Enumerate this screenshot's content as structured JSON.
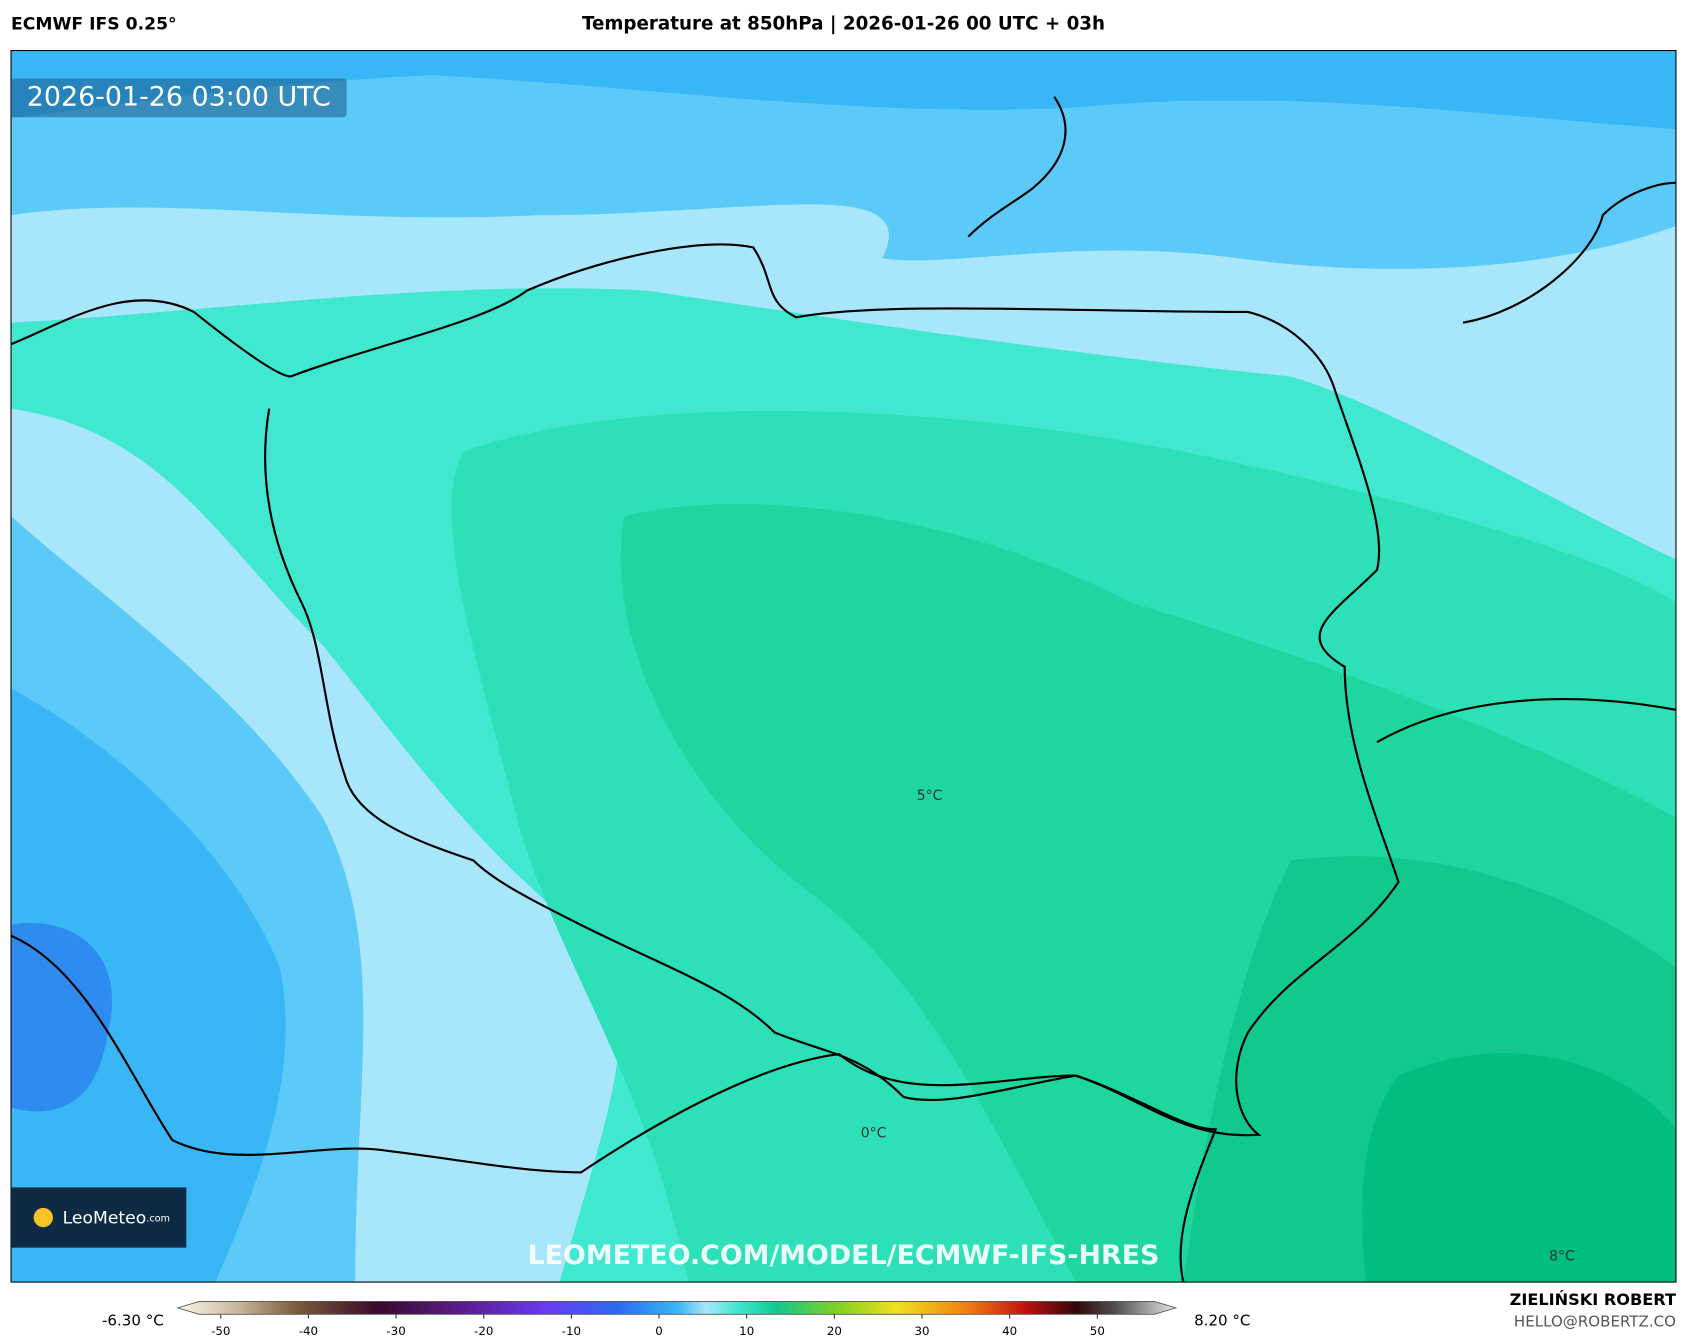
{
  "header": {
    "model": "ECMWF IFS 0.25°",
    "title": "Temperature at 850hPa | 2026-01-26 00 UTC + 03h"
  },
  "map": {
    "timestamp": "2026-01-26 03:00 UTC",
    "contour_labels": [
      "5°C",
      "0°C",
      "8°C"
    ],
    "watermark": "LEOMETEO.COM/MODEL/ECMWF-IFS-HRES",
    "logo": {
      "name": "LeoMeteo",
      "suffix": ".com"
    }
  },
  "colorbar": {
    "min_label": "-6.30 °C",
    "max_label": "8.20 °C",
    "ticks": [
      -50,
      -40,
      -30,
      -20,
      -10,
      0,
      10,
      20,
      30,
      40,
      50
    ]
  },
  "credits": {
    "author": "ZIELIŃSKI ROBERT",
    "contact": "HELLO@ROBERTZ.CO"
  }
}
